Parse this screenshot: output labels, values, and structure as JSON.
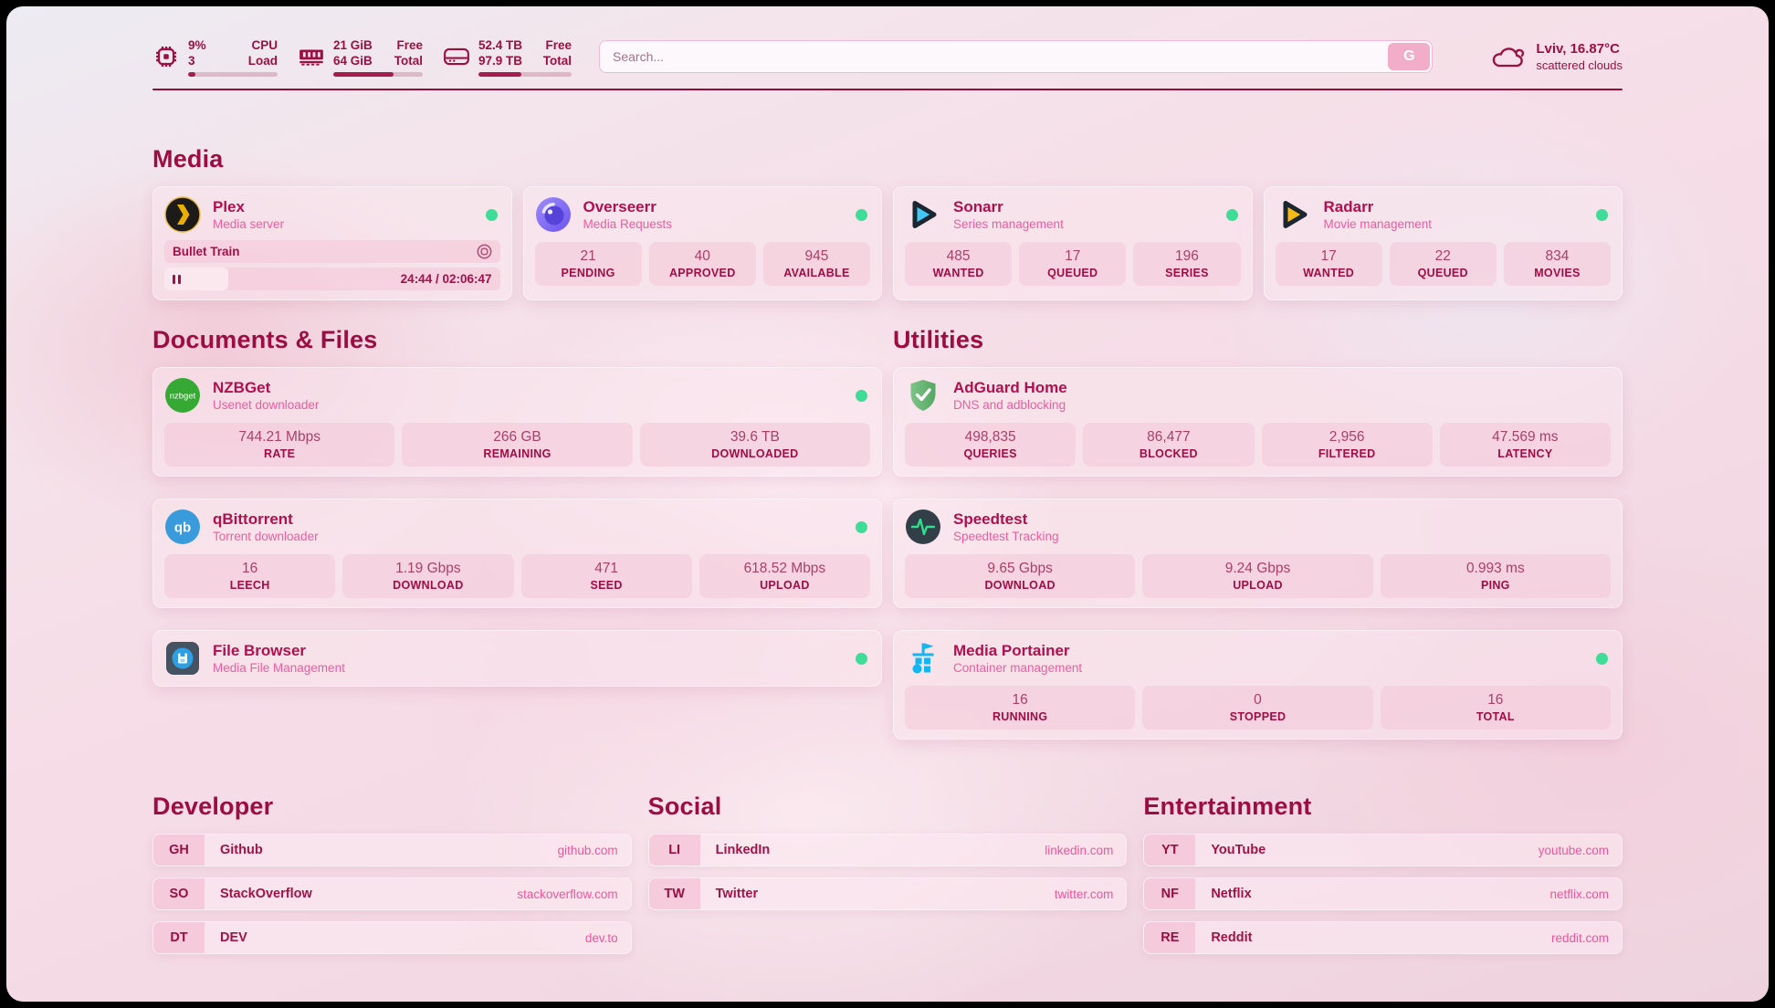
{
  "header": {
    "cpu": {
      "value_row1": "9%",
      "value_row2": "3",
      "label_row1": "CPU",
      "label_row2": "Load",
      "progress_percent": 8
    },
    "memory": {
      "value_row1": "21 GiB",
      "value_row2": "64 GiB",
      "label_row1": "Free",
      "label_row2": "Total",
      "progress_percent": 67
    },
    "disk": {
      "value_row1": "52.4 TB",
      "value_row2": "97.9 TB",
      "label_row1": "Free",
      "label_row2": "Total",
      "progress_percent": 46
    },
    "search": {
      "placeholder": "Search...",
      "button_label": "G"
    },
    "weather": {
      "location": "Lviv, 16.87°C",
      "condition": "scattered clouds"
    }
  },
  "sections": {
    "media": "Media",
    "documents": "Documents & Files",
    "utilities": "Utilities",
    "developer": "Developer",
    "social": "Social",
    "entertainment": "Entertainment"
  },
  "apps": {
    "plex": {
      "name": "Plex",
      "description": "Media server",
      "now_playing": "Bullet Train",
      "time": "24:44 / 02:06:47",
      "progress_percent": 19
    },
    "overseerr": {
      "name": "Overseerr",
      "description": "Media Requests",
      "stats": [
        {
          "value": "21",
          "label": "PENDING"
        },
        {
          "value": "40",
          "label": "APPROVED"
        },
        {
          "value": "945",
          "label": "AVAILABLE"
        }
      ]
    },
    "sonarr": {
      "name": "Sonarr",
      "description": "Series management",
      "stats": [
        {
          "value": "485",
          "label": "WANTED"
        },
        {
          "value": "17",
          "label": "QUEUED"
        },
        {
          "value": "196",
          "label": "SERIES"
        }
      ]
    },
    "radarr": {
      "name": "Radarr",
      "description": "Movie management",
      "stats": [
        {
          "value": "17",
          "label": "WANTED"
        },
        {
          "value": "22",
          "label": "QUEUED"
        },
        {
          "value": "834",
          "label": "MOVIES"
        }
      ]
    },
    "nzbget": {
      "name": "NZBGet",
      "description": "Usenet downloader",
      "stats": [
        {
          "value": "744.21 Mbps",
          "label": "RATE"
        },
        {
          "value": "266 GB",
          "label": "REMAINING"
        },
        {
          "value": "39.6 TB",
          "label": "DOWNLOADED"
        }
      ]
    },
    "qbittorrent": {
      "name": "qBittorrent",
      "description": "Torrent downloader",
      "stats": [
        {
          "value": "16",
          "label": "LEECH"
        },
        {
          "value": "1.19 Gbps",
          "label": "DOWNLOAD"
        },
        {
          "value": "471",
          "label": "SEED"
        },
        {
          "value": "618.52 Mbps",
          "label": "UPLOAD"
        }
      ]
    },
    "filebrowser": {
      "name": "File Browser",
      "description": "Media File Management"
    },
    "adguard": {
      "name": "AdGuard Home",
      "description": "DNS and adblocking",
      "stats": [
        {
          "value": "498,835",
          "label": "QUERIES"
        },
        {
          "value": "86,477",
          "label": "BLOCKED"
        },
        {
          "value": "2,956",
          "label": "FILTERED"
        },
        {
          "value": "47.569 ms",
          "label": "LATENCY"
        }
      ]
    },
    "speedtest": {
      "name": "Speedtest",
      "description": "Speedtest Tracking",
      "stats": [
        {
          "value": "9.65 Gbps",
          "label": "DOWNLOAD"
        },
        {
          "value": "9.24 Gbps",
          "label": "UPLOAD"
        },
        {
          "value": "0.993 ms",
          "label": "PING"
        }
      ]
    },
    "portainer": {
      "name": "Media Portainer",
      "description": "Container management",
      "stats": [
        {
          "value": "16",
          "label": "RUNNING"
        },
        {
          "value": "0",
          "label": "STOPPED"
        },
        {
          "value": "16",
          "label": "TOTAL"
        }
      ]
    }
  },
  "bookmarks": {
    "developer": [
      {
        "abbr": "GH",
        "name": "Github",
        "url": "github.com"
      },
      {
        "abbr": "SO",
        "name": "StackOverflow",
        "url": "stackoverflow.com"
      },
      {
        "abbr": "DT",
        "name": "DEV",
        "url": "dev.to"
      }
    ],
    "social": [
      {
        "abbr": "LI",
        "name": "LinkedIn",
        "url": "linkedin.com"
      },
      {
        "abbr": "TW",
        "name": "Twitter",
        "url": "twitter.com"
      }
    ],
    "entertainment": [
      {
        "abbr": "YT",
        "name": "YouTube",
        "url": "youtube.com"
      },
      {
        "abbr": "NF",
        "name": "Netflix",
        "url": "netflix.com"
      },
      {
        "abbr": "RE",
        "name": "Reddit",
        "url": "reddit.com"
      }
    ]
  }
}
